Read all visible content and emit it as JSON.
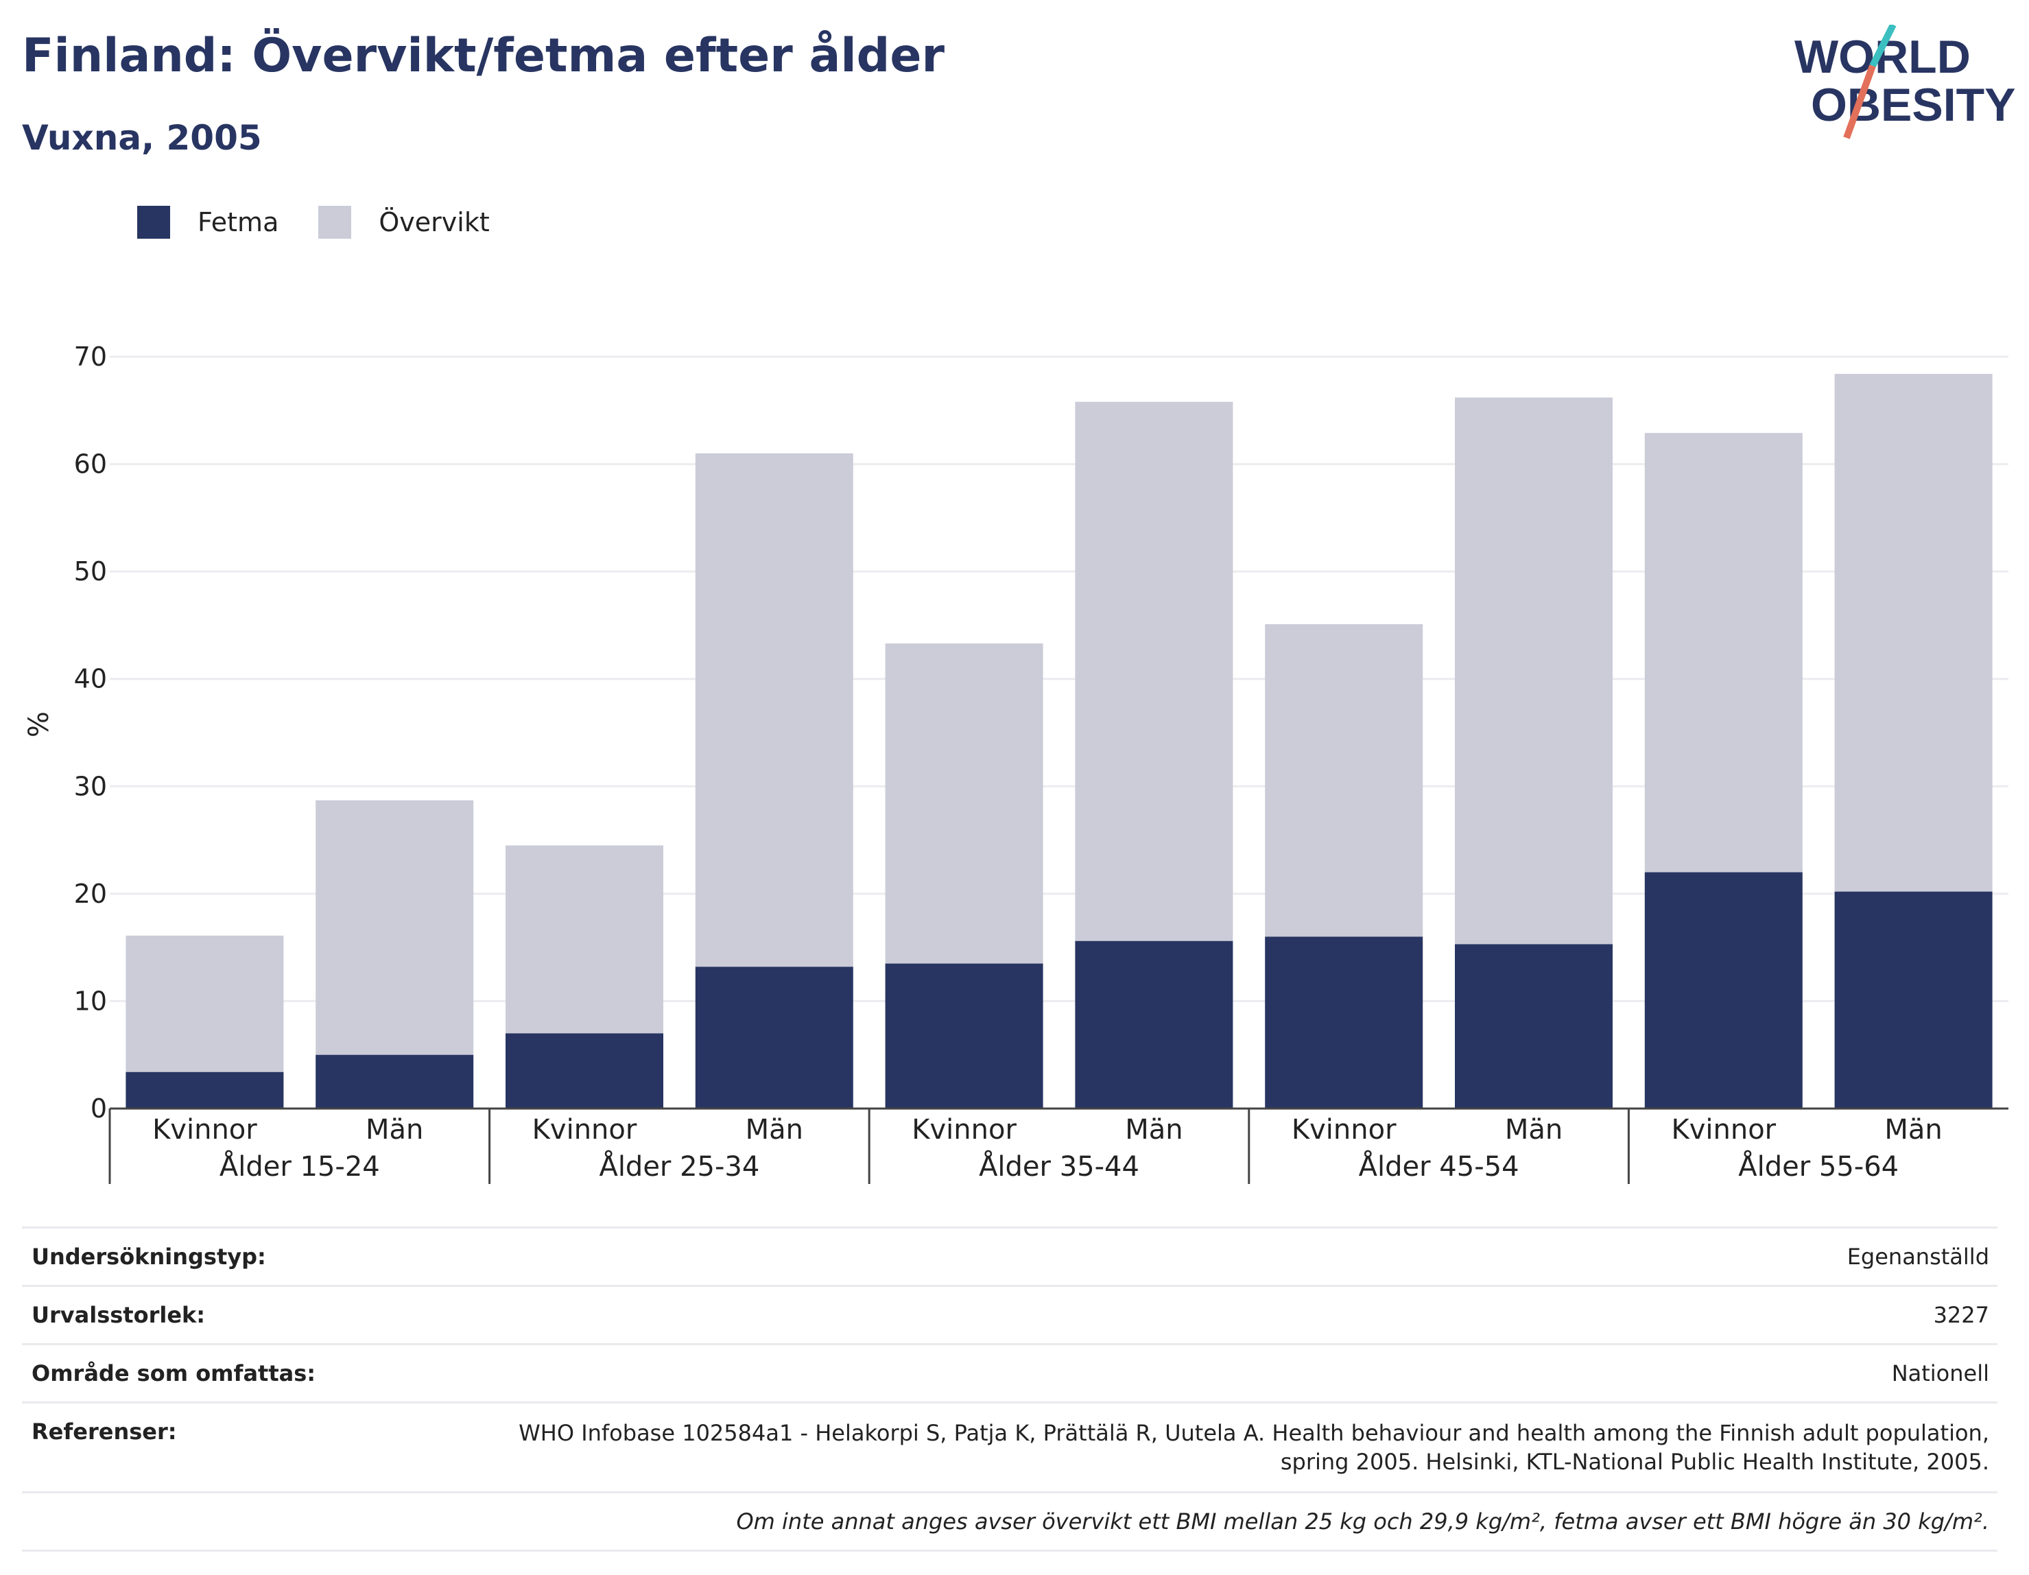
{
  "header": {
    "title": "Finland: Övervikt/fetma efter ålder",
    "subtitle": "Vuxna, 2005",
    "logo_line1": "WORLD",
    "logo_line2": "OBESITY"
  },
  "colors": {
    "fetma": "#283562",
    "overvikt": "#cbccd8",
    "title": "#283562",
    "logo_teal": "#3bbfc0",
    "logo_coral": "#e3705a"
  },
  "chart_data": {
    "type": "bar",
    "stacked": true,
    "ylabel": "%",
    "ylim": [
      0,
      70
    ],
    "yticks": [
      0,
      10,
      20,
      30,
      40,
      50,
      60,
      70
    ],
    "grid": true,
    "legend_position": "top-left",
    "groups": [
      "Ålder 15-24",
      "Ålder 25-34",
      "Ålder 35-44",
      "Ålder 45-54",
      "Ålder 55-64"
    ],
    "subcategories": [
      "Kvinnor",
      "Män"
    ],
    "series": [
      {
        "name": "Fetma",
        "values": [
          3.4,
          5.0,
          7.0,
          13.2,
          13.5,
          15.6,
          16.0,
          15.3,
          22.0,
          20.2
        ]
      },
      {
        "name": "Övervikt",
        "values": [
          12.7,
          23.7,
          17.5,
          47.8,
          29.8,
          50.2,
          29.1,
          50.9,
          40.9,
          48.2
        ]
      }
    ],
    "totals": [
      16.1,
      28.7,
      24.5,
      61.0,
      43.3,
      65.8,
      45.1,
      66.2,
      62.9,
      68.4
    ]
  },
  "info": {
    "survey_type_label": "Undersökningstyp:",
    "survey_type_value": "Egenanställd",
    "sample_size_label": "Urvalsstorlek:",
    "sample_size_value": "3227",
    "coverage_label": "Område som omfattas:",
    "coverage_value": "Nationell",
    "references_label": "Referenser:",
    "references_line1": "WHO Infobase 102584a1 - Helakorpi S, Patja K, Prättälä R, Uutela A. Health behaviour and health among the Finnish adult population,",
    "references_line2": "spring 2005. Helsinki, KTL-National Public Health Institute, 2005.",
    "note": "Om inte annat anges avser övervikt ett BMI mellan 25 kg och 29,9 kg/m², fetma avser ett BMI högre än 30 kg/m²."
  }
}
